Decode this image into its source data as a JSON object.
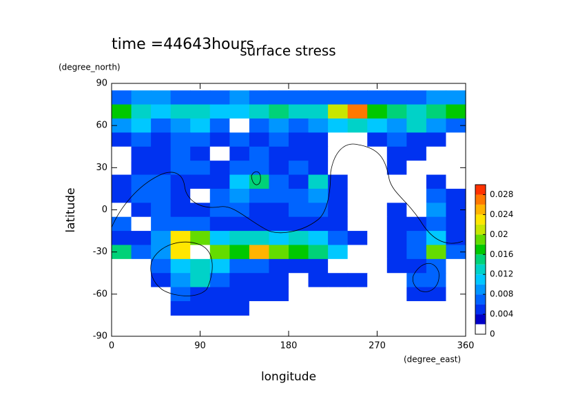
{
  "chart_data": {
    "type": "contourf",
    "title": "surface stress",
    "subtitle": "time =44643hours",
    "xlabel": "longitude",
    "ylabel": "latitude",
    "xunit": "(degree_east)",
    "yunit": "(degree_north)",
    "xlim": [
      0,
      360
    ],
    "xticks": [
      0,
      90,
      180,
      270,
      360
    ],
    "ylim": [
      -90,
      90
    ],
    "yticks": [
      -90,
      -60,
      -30,
      0,
      30,
      60,
      90
    ],
    "x": [
      10,
      30,
      50,
      70,
      90,
      110,
      130,
      150,
      170,
      190,
      210,
      230,
      250,
      270,
      290,
      310,
      330,
      350
    ],
    "y": [
      80,
      70,
      60,
      50,
      40,
      30,
      20,
      10,
      0,
      -10,
      -20,
      -30,
      -40,
      -50,
      -60,
      -70
    ],
    "z": [
      [
        0.006,
        0.008,
        0.008,
        0.006,
        0.006,
        0.006,
        0.008,
        0.006,
        0.006,
        0.006,
        0.006,
        0.006,
        0.006,
        0.006,
        0.006,
        0.006,
        0.008,
        0.008
      ],
      [
        0.016,
        0.012,
        0.01,
        0.012,
        0.012,
        0.01,
        0.01,
        0.012,
        0.014,
        0.012,
        0.012,
        0.02,
        0.026,
        0.016,
        0.014,
        0.012,
        0.014,
        0.016
      ],
      [
        0.008,
        0.01,
        0.006,
        0.008,
        0.01,
        0.006,
        0.001,
        0.006,
        0.008,
        0.006,
        0.008,
        0.01,
        0.012,
        0.01,
        0.008,
        0.012,
        0.008,
        0.006
      ],
      [
        0.004,
        0.006,
        0.004,
        0.006,
        0.006,
        0.004,
        0.006,
        0.004,
        0.006,
        0.004,
        0.004,
        0.001,
        0.001,
        0.004,
        0.006,
        0.004,
        0.004,
        0.001
      ],
      [
        0.001,
        0.004,
        0.004,
        0.006,
        0.004,
        0.001,
        0.004,
        0.006,
        0.004,
        0.004,
        0.004,
        0.001,
        0.001,
        0.001,
        0.004,
        0.004,
        0.001,
        0.001
      ],
      [
        0.001,
        0.004,
        0.004,
        0.006,
        0.006,
        0.004,
        0.006,
        0.006,
        0.004,
        0.006,
        0.004,
        0.001,
        0.001,
        0.001,
        0.004,
        0.001,
        0.001,
        0.001
      ],
      [
        0.004,
        0.006,
        0.006,
        0.004,
        0.004,
        0.004,
        0.01,
        0.014,
        0.006,
        0.004,
        0.012,
        0.004,
        0.001,
        0.001,
        0.001,
        0.001,
        0.004,
        0.001
      ],
      [
        0.004,
        0.006,
        0.006,
        0.004,
        0.001,
        0.006,
        0.008,
        0.006,
        0.006,
        0.006,
        0.008,
        0.004,
        0.001,
        0.001,
        0.001,
        0.001,
        0.006,
        0.004
      ],
      [
        0.001,
        0.004,
        0.006,
        0.004,
        0.004,
        0.006,
        0.006,
        0.004,
        0.004,
        0.006,
        0.006,
        0.004,
        0.001,
        0.001,
        0.004,
        0.001,
        0.008,
        0.004
      ],
      [
        0.006,
        0.001,
        0.006,
        0.006,
        0.006,
        0.004,
        0.004,
        0.004,
        0.004,
        0.004,
        0.004,
        0.004,
        0.001,
        0.001,
        0.004,
        0.004,
        0.006,
        0.004
      ],
      [
        0.004,
        0.004,
        0.008,
        0.022,
        0.018,
        0.01,
        0.012,
        0.012,
        0.01,
        0.012,
        0.01,
        0.006,
        0.004,
        0.001,
        0.004,
        0.006,
        0.01,
        0.004
      ],
      [
        0.014,
        0.006,
        0.008,
        0.022,
        0.001,
        0.018,
        0.016,
        0.024,
        0.018,
        0.016,
        0.014,
        0.01,
        0.001,
        0.001,
        0.004,
        0.006,
        0.018,
        0.006
      ],
      [
        0.001,
        0.001,
        0.006,
        0.01,
        0.012,
        0.01,
        0.006,
        0.006,
        0.004,
        0.004,
        0.004,
        0.001,
        0.001,
        0.001,
        0.004,
        0.004,
        0.006,
        0.001
      ],
      [
        0.001,
        0.001,
        0.004,
        0.008,
        0.012,
        0.006,
        0.004,
        0.004,
        0.004,
        0.001,
        0.004,
        0.004,
        0.004,
        0.001,
        0.001,
        0.006,
        0.006,
        0.001
      ],
      [
        0.001,
        0.001,
        0.001,
        0.006,
        0.004,
        0.004,
        0.004,
        0.004,
        0.004,
        0.001,
        0.001,
        0.001,
        0.001,
        0.001,
        0.001,
        0.004,
        0.004,
        0.001
      ],
      [
        0.001,
        0.001,
        0.001,
        0.004,
        0.004,
        0.004,
        0.004,
        0.001,
        0.001,
        0.001,
        0.001,
        0.001,
        0.001,
        0.001,
        0.001,
        0.001,
        0.001,
        0.001
      ]
    ],
    "levels": [
      0,
      0.002,
      0.004,
      0.006,
      0.008,
      0.01,
      0.012,
      0.014,
      0.016,
      0.018,
      0.02,
      0.022,
      0.024,
      0.026,
      0.028,
      0.03
    ],
    "colors": [
      "#ffffff",
      "#0000c8",
      "#0032f0",
      "#0064ff",
      "#0096ff",
      "#00c8ff",
      "#00d2c8",
      "#00d278",
      "#00c800",
      "#64dc00",
      "#c8e600",
      "#ffe600",
      "#ffb400",
      "#ff7800",
      "#ff3200"
    ],
    "cticks": [
      0,
      0.004,
      0.008,
      0.012,
      0.016,
      0.02,
      0.024,
      0.028
    ]
  }
}
